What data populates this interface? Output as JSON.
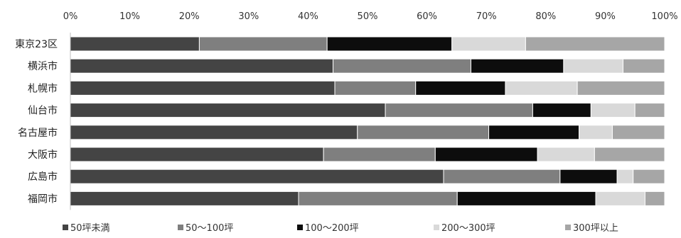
{
  "chart_data": {
    "type": "bar",
    "orientation": "horizontal",
    "stacked": "percent",
    "title": "",
    "xlabel": "",
    "ylabel": "",
    "xlim": [
      0,
      100
    ],
    "x_ticks": [
      "0%",
      "10%",
      "20%",
      "30%",
      "40%",
      "50%",
      "60%",
      "70%",
      "80%",
      "90%",
      "100%"
    ],
    "grid": false,
    "legend_position": "bottom",
    "categories": [
      "東京23区",
      "横浜市",
      "札幌市",
      "仙台市",
      "名古屋市",
      "大阪市",
      "広島市",
      "福岡市"
    ],
    "series": [
      {
        "name": "50坪未満",
        "color": "#444444",
        "values": [
          21.7,
          44.2,
          44.5,
          53.0,
          48.3,
          42.6,
          62.8,
          38.4
        ]
      },
      {
        "name": "50〜100坪",
        "color": "#7f7f7f",
        "values": [
          21.5,
          23.2,
          13.6,
          24.8,
          22.1,
          18.8,
          19.6,
          26.7
        ]
      },
      {
        "name": "100〜200坪",
        "color": "#0d0d0d",
        "values": [
          21.0,
          15.6,
          15.1,
          9.8,
          15.2,
          17.2,
          9.6,
          23.3
        ]
      },
      {
        "name": "200〜300坪",
        "color": "#d9d9d9",
        "values": [
          12.4,
          10.0,
          12.1,
          7.4,
          5.6,
          9.6,
          2.7,
          8.3
        ]
      },
      {
        "name": "300坪以上",
        "color": "#a6a6a6",
        "values": [
          23.4,
          7.0,
          14.7,
          5.0,
          8.8,
          11.8,
          5.3,
          3.3
        ]
      }
    ]
  }
}
